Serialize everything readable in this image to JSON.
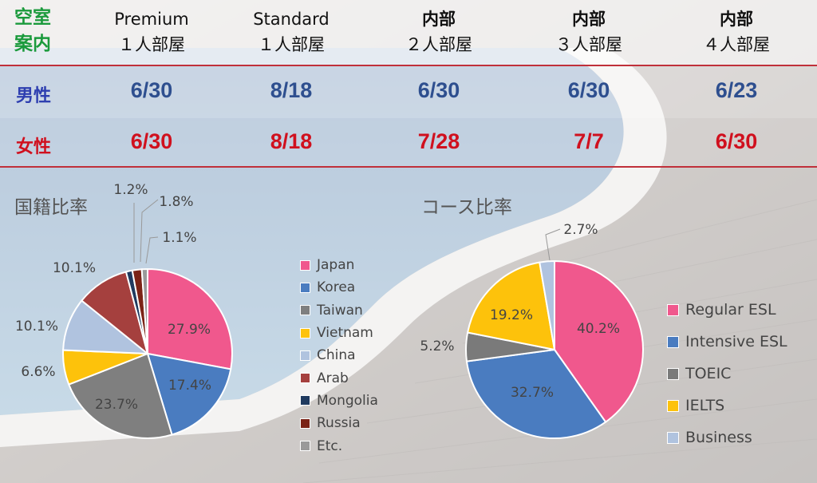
{
  "vacancy": {
    "title": [
      "空室",
      "案内"
    ],
    "columns": [
      {
        "line1": "Premium",
        "line2": "１人部屋",
        "bold": false
      },
      {
        "line1": "Standard",
        "line2": "１人部屋",
        "bold": false
      },
      {
        "line1": "内部",
        "line2": "２人部屋",
        "bold": true
      },
      {
        "line1": "内部",
        "line2": "３人部屋",
        "bold": true
      },
      {
        "line1": "内部",
        "line2": "４人部屋",
        "bold": true
      }
    ],
    "rows": [
      {
        "label": "男性",
        "values": [
          "6/30",
          "8/18",
          "6/30",
          "6/30",
          "6/23"
        ],
        "color": "#2e4f8f"
      },
      {
        "label": "女性",
        "values": [
          "6/30",
          "8/18",
          "7/28",
          "7/7",
          "6/30"
        ],
        "color": "#d0101e"
      }
    ]
  },
  "chart_data": [
    {
      "type": "pie",
      "title": "国籍比率",
      "categories": [
        "Japan",
        "Korea",
        "Taiwan",
        "Vietnam",
        "China",
        "Arab",
        "Mongolia",
        "Russia",
        "Etc."
      ],
      "values": [
        27.9,
        17.4,
        23.7,
        6.6,
        10.1,
        10.1,
        1.2,
        1.8,
        1.1
      ],
      "labels": [
        "27.9%",
        "17.4%",
        "23.7%",
        "6.6%",
        "10.1%",
        "10.1%",
        "1.2%",
        "1.8%",
        "1.1%"
      ],
      "colors": [
        "#f0588d",
        "#4a7cc0",
        "#7f7f7f",
        "#fdc20b",
        "#b0c3df",
        "#a5403e",
        "#1f3a5f",
        "#7b2316",
        "#9a9a9a"
      ],
      "legend_position": "right"
    },
    {
      "type": "pie",
      "title": "コース比率",
      "categories": [
        "Regular ESL",
        "Intensive ESL",
        "TOEIC",
        "IELTS",
        "Business"
      ],
      "values": [
        40.2,
        32.7,
        5.2,
        19.2,
        2.7
      ],
      "labels": [
        "40.2%",
        "32.7%",
        "5.2%",
        "19.2%",
        "2.7%"
      ],
      "colors": [
        "#f0588d",
        "#4a7cc0",
        "#7a7a7a",
        "#fdc20b",
        "#b0c3df"
      ],
      "legend_position": "right"
    }
  ]
}
